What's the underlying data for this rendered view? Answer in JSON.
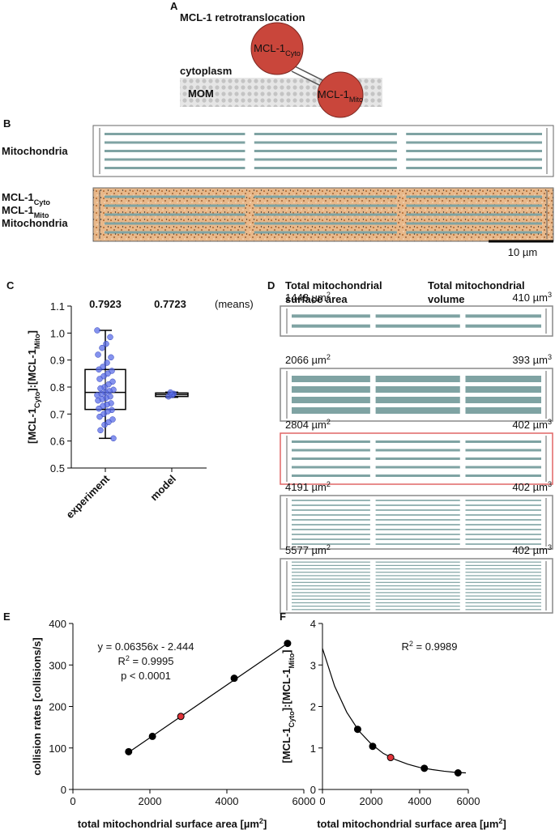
{
  "panel_a": {
    "label": "A",
    "title": "MCL-1 retrotranslocation",
    "cytoplasm": "cytoplasm",
    "membrane": "MOM",
    "cyto_protein": [
      "MCL-1",
      "Cyto"
    ],
    "mito_protein": [
      "MCL-1",
      "Mito"
    ]
  },
  "panel_b": {
    "label": "B",
    "top_label": "Mitochondria",
    "legend": [
      {
        "parts": [
          "MCL-1",
          "Cyto"
        ],
        "color": "#c98a52"
      },
      {
        "parts": [
          "MCL-1",
          "Mito"
        ],
        "color": "#000000"
      },
      {
        "parts": [
          "Mitochondria"
        ],
        "color": "#8fb3b3"
      }
    ],
    "scale_bar": "10 µm"
  },
  "panel_d": {
    "label": "D",
    "header_area": [
      "Total mitochondrial",
      "surface area"
    ],
    "header_volume": [
      "Total mitochondrial",
      "volume"
    ],
    "rows": [
      {
        "area": "1448 µm",
        "area_sup": "2",
        "volume": "410 µm",
        "volume_sup": "3",
        "border": "#888888"
      },
      {
        "area": "2066 µm",
        "area_sup": "2",
        "volume": "393 µm",
        "volume_sup": "3",
        "border": "#888888"
      },
      {
        "area": "2804 µm",
        "area_sup": "2",
        "volume": "402 µm",
        "volume_sup": "3",
        "border": "#e06666"
      },
      {
        "area": "4191 µm",
        "area_sup": "2",
        "volume": "402 µm",
        "volume_sup": "3",
        "border": "#888888"
      },
      {
        "area": "5577 µm",
        "area_sup": "2",
        "volume": "402 µm",
        "volume_sup": "3",
        "border": "#888888"
      }
    ]
  },
  "chart_data": [
    {
      "type": "box",
      "label": "C",
      "y_label": [
        "[MCL-1",
        "Cyto",
        "]:[MCL-1",
        "Mito",
        "]"
      ],
      "categories": [
        "experiment",
        "model"
      ],
      "means": [
        0.7923,
        0.7723
      ],
      "means_note": "(means)",
      "ylim": [
        0.5,
        1.1
      ],
      "yticks": [
        0.5,
        0.6,
        0.7,
        0.8,
        0.9,
        1.0,
        1.1
      ],
      "yticks_labels": [
        "0.5",
        "0.6",
        "0.7",
        "0.8",
        "0.9",
        "1.0",
        "1.1"
      ],
      "point_color": "#5b6ee8",
      "boxes": [
        {
          "q1": 0.717,
          "median": 0.78,
          "q3": 0.865,
          "whisker_low": 0.61,
          "whisker_high": 1.01,
          "points": [
            1.01,
            0.985,
            0.96,
            0.945,
            0.92,
            0.91,
            0.89,
            0.875,
            0.865,
            0.86,
            0.85,
            0.84,
            0.83,
            0.82,
            0.81,
            0.8,
            0.795,
            0.79,
            0.785,
            0.78,
            0.775,
            0.77,
            0.765,
            0.76,
            0.755,
            0.75,
            0.74,
            0.735,
            0.73,
            0.72,
            0.715,
            0.71,
            0.7,
            0.69,
            0.68,
            0.67,
            0.66,
            0.64,
            0.61
          ]
        },
        {
          "q1": 0.765,
          "median": 0.772,
          "q3": 0.778,
          "whisker_low": 0.762,
          "whisker_high": 0.781,
          "points": [
            0.765,
            0.775,
            0.77,
            0.78
          ]
        }
      ]
    },
    {
      "type": "scatter",
      "label": "E",
      "y_label": "collision rates [collisions/s]",
      "x_label": [
        "total mitochondrial surface area [µm",
        "2",
        "]"
      ],
      "x": [
        1448,
        2066,
        2804,
        4191,
        5577
      ],
      "y": [
        91,
        128,
        176,
        268,
        352
      ],
      "colors": [
        "#000000",
        "#000000",
        "#e0333a",
        "#000000",
        "#000000"
      ],
      "fit": {
        "x": [
          1448,
          5577
        ],
        "y": [
          89.6,
          352
        ]
      },
      "annotations": [
        [
          "y = 0.06356x - 2.444"
        ],
        [
          "R",
          "2",
          " = 0.9995"
        ],
        [
          "p < 0.0001"
        ]
      ],
      "xlim": [
        0,
        6000
      ],
      "xticks": [
        0,
        2000,
        4000,
        6000
      ],
      "ylim": [
        0,
        400
      ],
      "yticks": [
        0,
        100,
        200,
        300,
        400
      ]
    },
    {
      "type": "scatter",
      "label": "F",
      "y_label": [
        "[MCL-1",
        "Cyto",
        "]:[MCL-1",
        "Mito",
        "]"
      ],
      "x_label": [
        "total mitochondrial surface area [µm",
        "2",
        "]"
      ],
      "x": [
        1448,
        2066,
        2804,
        4191,
        5577
      ],
      "y": [
        1.45,
        1.04,
        0.77,
        0.51,
        0.4
      ],
      "colors": [
        "#000000",
        "#000000",
        "#e0333a",
        "#000000",
        "#000000"
      ],
      "fit": {
        "x": [
          0,
          500,
          1000,
          1500,
          2000,
          2500,
          3000,
          3500,
          4000,
          4500,
          5000,
          5500,
          5900
        ],
        "y": [
          3.4,
          2.49,
          1.86,
          1.41,
          1.1,
          0.87,
          0.72,
          0.61,
          0.53,
          0.48,
          0.44,
          0.41,
          0.4
        ]
      },
      "annotations": [
        [
          "R",
          "2",
          " = 0.9989"
        ]
      ],
      "xlim": [
        0,
        6000
      ],
      "xticks": [
        0,
        2000,
        4000,
        6000
      ],
      "ylim": [
        0,
        4
      ],
      "yticks": [
        0,
        1,
        2,
        3,
        4
      ]
    }
  ]
}
